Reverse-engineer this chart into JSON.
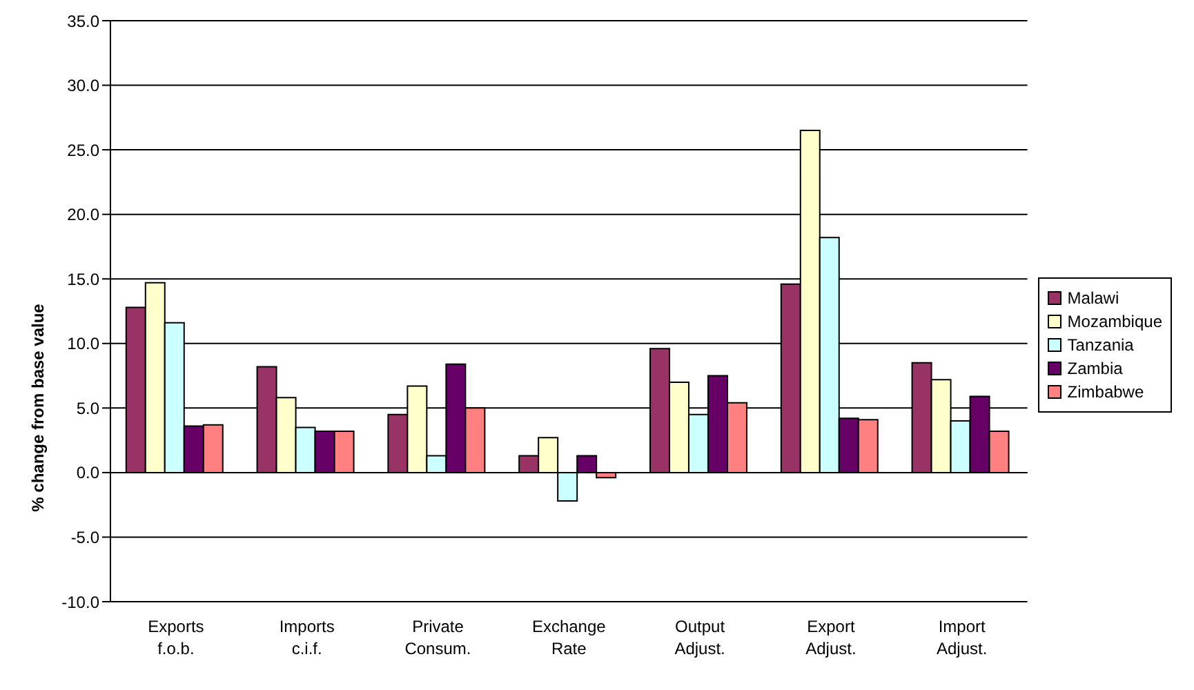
{
  "chart_data": {
    "type": "bar",
    "ylabel": "% change from base value",
    "categories": [
      "Exports f.o.b.",
      "Imports c.i.f.",
      "Private Consum.",
      "Exchange Rate",
      "Output Adjust.",
      "Export Adjust.",
      "Import Adjust."
    ],
    "series": [
      {
        "name": "Malawi",
        "color": "#993366",
        "values": [
          12.8,
          8.2,
          4.5,
          1.3,
          9.6,
          14.6,
          8.5
        ]
      },
      {
        "name": "Mozambique",
        "color": "#ffffcc",
        "values": [
          14.7,
          5.8,
          6.7,
          2.7,
          7.0,
          26.5,
          7.2
        ]
      },
      {
        "name": "Tanzania",
        "color": "#ccffff",
        "values": [
          11.6,
          3.5,
          1.3,
          -2.2,
          4.5,
          18.2,
          4.0
        ]
      },
      {
        "name": "Zambia",
        "color": "#660066",
        "values": [
          3.6,
          3.2,
          8.4,
          1.3,
          7.5,
          4.2,
          5.9
        ]
      },
      {
        "name": "Zimbabwe",
        "color": "#ff8080",
        "values": [
          3.7,
          3.2,
          5.0,
          -0.4,
          5.4,
          4.1,
          3.2
        ]
      }
    ],
    "ylim": [
      -10,
      35
    ],
    "yticks": [
      {
        "value": -10,
        "label": "-10.0"
      },
      {
        "value": -5,
        "label": "-5.0"
      },
      {
        "value": 0,
        "label": "0.0"
      },
      {
        "value": 5,
        "label": "5.0"
      },
      {
        "value": 10,
        "label": "10.0"
      },
      {
        "value": 15,
        "label": "15.0"
      },
      {
        "value": 20,
        "label": "20.0"
      },
      {
        "value": 25,
        "label": "25.0"
      },
      {
        "value": 30,
        "label": "30.0"
      },
      {
        "value": 35,
        "label": "35.0"
      }
    ],
    "grid": "y",
    "legend": "right"
  }
}
